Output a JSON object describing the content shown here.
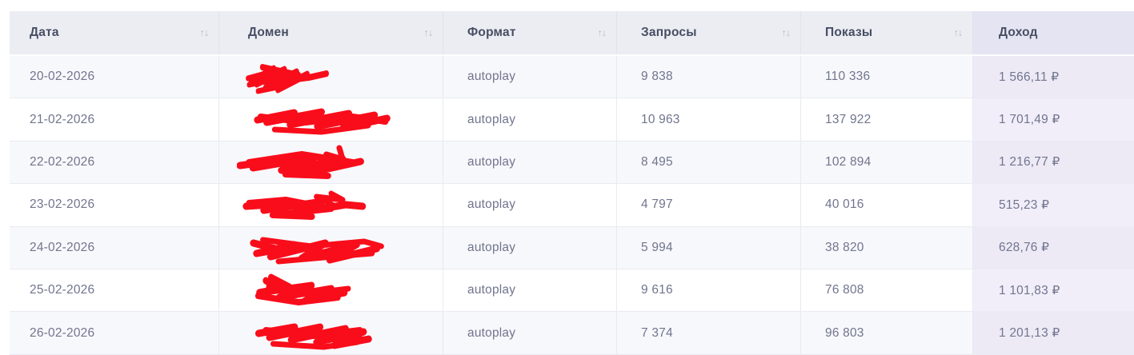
{
  "table": {
    "sort_icon_up": "↑",
    "sort_icon_down": "↓",
    "columns": [
      {
        "key": "date",
        "label": "Дата",
        "sortable": true,
        "highlighted": false
      },
      {
        "key": "domain",
        "label": "Домен",
        "sortable": true,
        "highlighted": false
      },
      {
        "key": "format",
        "label": "Формат",
        "sortable": true,
        "highlighted": false
      },
      {
        "key": "requests",
        "label": "Запросы",
        "sortable": true,
        "highlighted": false
      },
      {
        "key": "impressions",
        "label": "Показы",
        "sortable": true,
        "highlighted": false
      },
      {
        "key": "revenue",
        "label": "Доход",
        "sortable": false,
        "highlighted": true
      }
    ],
    "rows": [
      {
        "date": "20-02-2026",
        "domain_redacted": true,
        "format": "autoplay",
        "requests": "9 838",
        "impressions": "110 336",
        "revenue": "1 566,11 ₽"
      },
      {
        "date": "21-02-2026",
        "domain_redacted": true,
        "format": "autoplay",
        "requests": "10 963",
        "impressions": "137 922",
        "revenue": "1 701,49 ₽"
      },
      {
        "date": "22-02-2026",
        "domain_redacted": true,
        "format": "autoplay",
        "requests": "8 495",
        "impressions": "102 894",
        "revenue": "1 216,77 ₽"
      },
      {
        "date": "23-02-2026",
        "domain_redacted": true,
        "format": "autoplay",
        "requests": "4 797",
        "impressions": "40 016",
        "revenue": "515,23 ₽"
      },
      {
        "date": "24-02-2026",
        "domain_redacted": true,
        "format": "autoplay",
        "requests": "5 994",
        "impressions": "38 820",
        "revenue": "628,76 ₽"
      },
      {
        "date": "25-02-2026",
        "domain_redacted": true,
        "format": "autoplay",
        "requests": "9 616",
        "impressions": "76 808",
        "revenue": "1 101,83 ₽"
      },
      {
        "date": "26-02-2026",
        "domain_redacted": true,
        "format": "autoplay",
        "requests": "7 374",
        "impressions": "96 803",
        "revenue": "1 201,13 ₽"
      }
    ]
  },
  "colors": {
    "header_bg": "#ebedf3",
    "header_highlight_bg": "#e5e4f3",
    "header_text": "#474e63",
    "row_odd_bg": "#f7f8fb",
    "row_even_bg": "#ffffff",
    "revenue_cell_odd_bg": "#edeaf6",
    "revenue_cell_even_bg": "#f1eefa",
    "body_text": "#71758e",
    "sort_icon": "#b7bbc8",
    "redaction_red": "#f90d1b",
    "border": "#e8eaf2"
  }
}
